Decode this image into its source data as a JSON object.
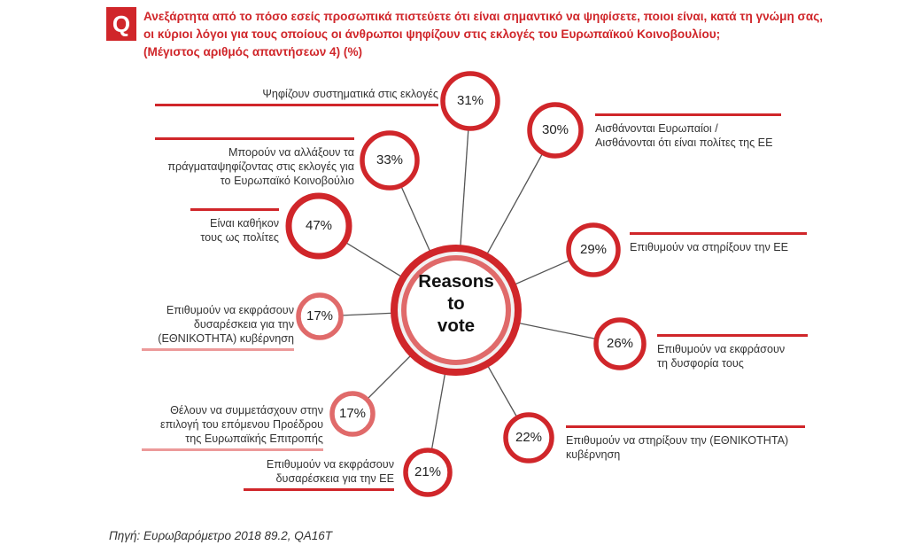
{
  "header": {
    "badge": "Q",
    "question_lines": [
      "Ανεξάρτητα από το πόσο εσείς προσωπικά πιστεύετε ότι είναι σημαντικό  να ψηφίσετε, ποιοι είναι, κατά τη γνώμη σας,",
      "οι κύριοι λόγοι για τους οποίους οι άνθρωποι ψηφίζουν στις εκλογές του Ευρωπαϊκού Κοινοβουλίου;",
      "(Μέγιστος αριθμός απαντήσεων 4) (%)"
    ]
  },
  "hub": {
    "lines": [
      "Reasons",
      "to",
      "vote"
    ]
  },
  "colors": {
    "accent": "#d0262a",
    "light": "#e06a6a",
    "spoke": "#555555",
    "bar_dark": "#d0262a",
    "bar_light": "#ec9a9a"
  },
  "reasons": [
    {
      "value": "31%",
      "lines": [
        "Ψηφίζουν συστηματικά στις εκλογές"
      ]
    },
    {
      "value": "30%",
      "lines": [
        "Αισθάνονται Ευρωπαίοι /",
        "Αισθάνονται ότι είναι πολίτες της ΕΕ"
      ]
    },
    {
      "value": "29%",
      "lines": [
        "Επιθυμούν να στηρίξουν την ΕΕ"
      ]
    },
    {
      "value": "26%",
      "lines": [
        "Επιθυμούν να εκφράσουν",
        "τη δυσφορία τους"
      ]
    },
    {
      "value": "22%",
      "lines": [
        "Επιθυμούν να στηρίξουν την (ΕΘΝΙΚΟΤΗΤΑ)",
        "κυβέρνηση"
      ]
    },
    {
      "value": "21%",
      "lines": [
        "Επιθυμούν να εκφράσουν",
        "δυσαρέσκεια για την ΕΕ"
      ]
    },
    {
      "value": "17%",
      "lines": [
        "Θέλουν να συμμετάσχουν στην",
        "επιλογή του επόμενου Προέδρου",
        "της Ευρωπαϊκής Επιτροπής"
      ]
    },
    {
      "value": "17%",
      "lines": [
        "Επιθυμούν να εκφράσουν",
        "δυσαρέσκεια για την",
        "(ΕΘΝΙΚΟΤΗΤΑ) κυβέρνηση"
      ]
    },
    {
      "value": "47%",
      "lines": [
        "Είναι καθήκον",
        "τους ως πολίτες"
      ]
    },
    {
      "value": "33%",
      "lines": [
        "Μπορούν να αλλάξουν τα",
        "πράγματαψηφίζοντας στις  εκλογές για",
        "το Ευρωπαϊκό Κοινοβούλιο"
      ]
    }
  ],
  "source": "Πηγή: Ευρωβαρόμετρο 2018 89.2, QA16T"
}
